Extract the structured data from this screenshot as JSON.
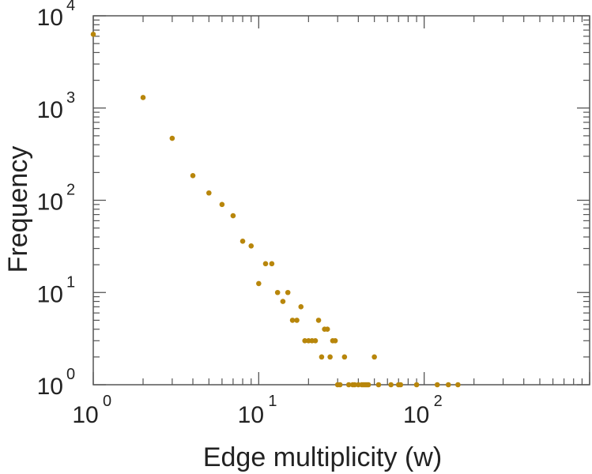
{
  "chart_data": {
    "type": "scatter",
    "title": "",
    "xlabel": "Edge multiplicity (w)",
    "ylabel": "Frequency",
    "xscale": "log",
    "yscale": "log",
    "xlim": [
      1,
      1000
    ],
    "ylim": [
      1,
      10000
    ],
    "grid": false,
    "legend": "none",
    "marker_color": "#b8860b",
    "axis_color": "#555555",
    "x_ticks": [
      {
        "value": 1,
        "base": "10",
        "exp": "0"
      },
      {
        "value": 10,
        "base": "10",
        "exp": "1"
      },
      {
        "value": 100,
        "base": "10",
        "exp": "2"
      }
    ],
    "y_ticks": [
      {
        "value": 1,
        "base": "10",
        "exp": "0"
      },
      {
        "value": 10,
        "base": "10",
        "exp": "1"
      },
      {
        "value": 100,
        "base": "10",
        "exp": "2"
      },
      {
        "value": 1000,
        "base": "10",
        "exp": "3"
      },
      {
        "value": 10000,
        "base": "10",
        "exp": "4"
      }
    ],
    "points": [
      [
        1,
        6300
      ],
      [
        2,
        1300
      ],
      [
        3,
        470
      ],
      [
        4,
        185
      ],
      [
        5,
        120
      ],
      [
        6,
        90
      ],
      [
        7,
        68
      ],
      [
        8,
        36
      ],
      [
        9,
        32
      ],
      [
        10,
        12.5
      ],
      [
        11,
        20.5
      ],
      [
        12,
        20.5
      ],
      [
        13,
        10
      ],
      [
        14,
        8
      ],
      [
        15,
        10
      ],
      [
        16,
        5
      ],
      [
        17,
        5
      ],
      [
        18,
        7
      ],
      [
        19,
        3
      ],
      [
        20,
        3
      ],
      [
        21,
        3
      ],
      [
        22,
        3
      ],
      [
        23,
        5
      ],
      [
        24,
        2
      ],
      [
        25,
        4
      ],
      [
        26,
        4
      ],
      [
        27,
        2
      ],
      [
        28,
        3
      ],
      [
        29,
        3
      ],
      [
        30,
        1
      ],
      [
        31,
        1
      ],
      [
        33,
        2
      ],
      [
        35,
        1
      ],
      [
        37,
        1
      ],
      [
        38,
        1
      ],
      [
        40,
        1
      ],
      [
        42,
        1
      ],
      [
        43,
        1
      ],
      [
        44,
        1
      ],
      [
        45,
        1
      ],
      [
        46,
        1
      ],
      [
        50,
        2
      ],
      [
        53,
        1
      ],
      [
        63,
        1
      ],
      [
        70,
        1
      ],
      [
        72,
        1
      ],
      [
        90,
        1
      ],
      [
        120,
        1
      ],
      [
        140,
        1
      ],
      [
        160,
        1
      ]
    ]
  }
}
